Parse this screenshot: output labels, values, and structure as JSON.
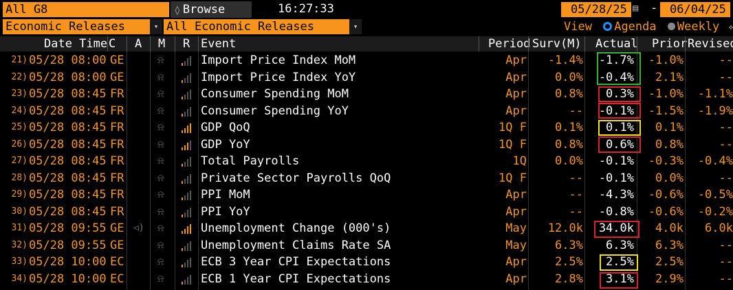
{
  "top": {
    "ticker": "All G8",
    "browse_label": "Browse",
    "time": "16:27:33",
    "start_date": "05/28/25",
    "end_date": "06/04/25",
    "date_dash": "-",
    "category": "Economic Releases",
    "subcategory": "All Economic Releases",
    "view_label": "View",
    "agenda_label": "Agenda",
    "weekly_label": "Weekly",
    "view_selected": "Agenda"
  },
  "headers": {
    "datetime": "Date Time",
    "c": "C",
    "a": "A",
    "m": "M",
    "r": "R",
    "event": "Event",
    "period": "Period",
    "survey": "Surv(M)",
    "actual": "Actual",
    "prior": "Prior",
    "revised": "Revised"
  },
  "rows": [
    {
      "n": "21)",
      "date": "05/28 08:00",
      "c": "GE",
      "event": "Import Price Index MoM",
      "period": "Apr",
      "surv": "-1.4%",
      "actual": "-1.7%",
      "prior": "-1.0%",
      "revised": "--",
      "rel": 1,
      "alert": false
    },
    {
      "n": "22)",
      "date": "05/28 08:00",
      "c": "GE",
      "event": "Import Price Index YoY",
      "period": "Apr",
      "surv": "0.0%",
      "actual": "-0.4%",
      "prior": "2.1%",
      "revised": "--",
      "rel": 1,
      "alert": false
    },
    {
      "n": "23)",
      "date": "05/28 08:45",
      "c": "FR",
      "event": "Consumer Spending MoM",
      "period": "Apr",
      "surv": "0.8%",
      "actual": "0.3%",
      "prior": "-1.0%",
      "revised": "-1.1%",
      "rel": 1,
      "alert": false
    },
    {
      "n": "24)",
      "date": "05/28 08:45",
      "c": "FR",
      "event": "Consumer Spending YoY",
      "period": "Apr",
      "surv": "--",
      "actual": "-0.1%",
      "prior": "-1.5%",
      "revised": "-1.9%",
      "rel": 1,
      "alert": false
    },
    {
      "n": "25)",
      "date": "05/28 08:45",
      "c": "FR",
      "event": "GDP QoQ",
      "period": "1Q F",
      "surv": "0.1%",
      "actual": "0.1%",
      "prior": "0.1%",
      "revised": "--",
      "rel": 4,
      "alert": false
    },
    {
      "n": "26)",
      "date": "05/28 08:45",
      "c": "FR",
      "event": "GDP YoY",
      "period": "1Q F",
      "surv": "0.8%",
      "actual": "0.6%",
      "prior": "0.8%",
      "revised": "--",
      "rel": 3,
      "alert": false
    },
    {
      "n": "27)",
      "date": "05/28 08:45",
      "c": "FR",
      "event": "Total Payrolls",
      "period": "1Q",
      "surv": "0.0%",
      "actual": "-0.1%",
      "prior": "-0.3%",
      "revised": "-0.4%",
      "rel": 1,
      "alert": false
    },
    {
      "n": "28)",
      "date": "05/28 08:45",
      "c": "FR",
      "event": "Private Sector Payrolls QoQ",
      "period": "1Q F",
      "surv": "--",
      "actual": "-0.1%",
      "prior": "0.0%",
      "revised": "--",
      "rel": 1,
      "alert": false
    },
    {
      "n": "29)",
      "date": "05/28 08:45",
      "c": "FR",
      "event": "PPI MoM",
      "period": "Apr",
      "surv": "--",
      "actual": "-4.3%",
      "prior": "-0.6%",
      "revised": "-0.5%",
      "rel": 1,
      "alert": false
    },
    {
      "n": "30)",
      "date": "05/28 08:45",
      "c": "FR",
      "event": "PPI YoY",
      "period": "Apr",
      "surv": "--",
      "actual": "-0.8%",
      "prior": "-0.6%",
      "revised": "-0.2%",
      "rel": 1,
      "alert": false
    },
    {
      "n": "31)",
      "date": "05/28 09:55",
      "c": "GE",
      "event": "Unemployment Change (000's)",
      "period": "May",
      "surv": "12.0k",
      "actual": "34.0k",
      "prior": "4.0k",
      "revised": "6.0k",
      "rel": 4,
      "alert": true
    },
    {
      "n": "32)",
      "date": "05/28 09:55",
      "c": "GE",
      "event": "Unemployment Claims Rate SA",
      "period": "May",
      "surv": "6.3%",
      "actual": "6.3%",
      "prior": "6.3%",
      "revised": "--",
      "rel": 1,
      "alert": false
    },
    {
      "n": "33)",
      "date": "05/28 10:00",
      "c": "EC",
      "event": "ECB 3 Year CPI Expectations",
      "period": "Apr",
      "surv": "2.5%",
      "actual": "2.5%",
      "prior": "2.5%",
      "revised": "--",
      "rel": 1,
      "alert": false
    },
    {
      "n": "34)",
      "date": "05/28 10:00",
      "c": "EC",
      "event": "ECB 1 Year CPI Expectations",
      "period": "Apr",
      "surv": "2.8%",
      "actual": "3.1%",
      "prior": "2.9%",
      "revised": "--",
      "rel": 1,
      "alert": false
    }
  ],
  "colors": {
    "orange": "#f7941d",
    "green_box": "#2eb82e",
    "red_box": "#e0202a",
    "yellow_box": "#f5e400"
  }
}
